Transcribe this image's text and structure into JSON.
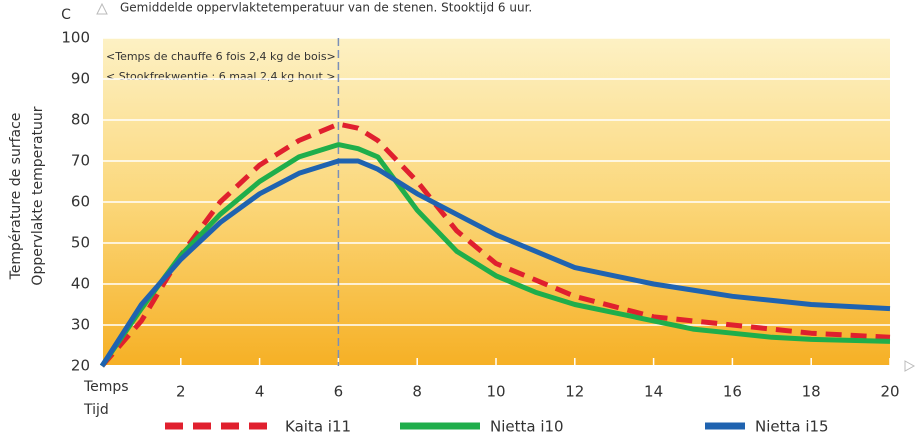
{
  "chart_data": {
    "type": "line",
    "title": "Gemiddelde oppervlaktetemperatuur van de stenen. Stooktijd 6 uur.",
    "y_unit": "C",
    "ylabel": [
      "Température de surface",
      "Oppervlakte temperatuur"
    ],
    "xlabel": [
      "Temps",
      "Tijd"
    ],
    "annotations": [
      "<Temps de chauffe 6 fois 2,4 kg de bois>",
      "< Stookfrekwentie : 6 maal 2,4 kg hout >"
    ],
    "marker_x": 6,
    "x": [
      0,
      1,
      2,
      3,
      4,
      5,
      6,
      6.5,
      7,
      8,
      9,
      10,
      11,
      12,
      13,
      14,
      15,
      16,
      17,
      18,
      20
    ],
    "series": [
      {
        "name": "Kaita i11",
        "color": "#e0202e",
        "style": "dashed",
        "values": [
          20,
          31,
          47,
          60,
          69,
          75,
          79,
          78,
          75,
          65,
          53,
          45,
          41,
          37,
          34.5,
          32,
          31,
          30,
          29,
          28,
          27
        ]
      },
      {
        "name": "Nietta i10",
        "color": "#1fae4b",
        "style": "solid",
        "values": [
          20,
          34,
          47,
          57,
          65,
          71,
          74,
          73,
          71,
          58,
          48,
          42,
          38,
          35,
          33,
          31,
          29,
          28,
          27,
          26.5,
          26
        ]
      },
      {
        "name": "Nietta i15",
        "color": "#1f63b0",
        "style": "solid",
        "values": [
          20,
          35,
          46,
          55,
          62,
          67,
          70,
          70,
          68,
          62,
          57,
          52,
          48,
          44,
          42,
          40,
          38.5,
          37,
          36,
          35,
          34
        ]
      }
    ],
    "xlim": [
      0,
      20
    ],
    "xticks": [
      2,
      4,
      6,
      8,
      10,
      12,
      14,
      16,
      18,
      20
    ],
    "ylim": [
      20,
      100
    ],
    "yticks": [
      20,
      30,
      40,
      50,
      60,
      70,
      80,
      90,
      100
    ],
    "grid": true
  }
}
